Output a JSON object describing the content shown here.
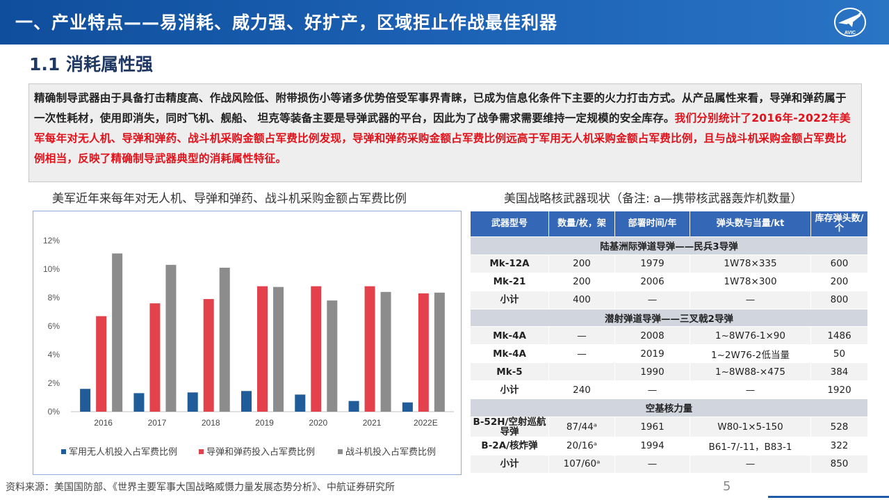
{
  "header": {
    "title": "一、产业特点——易消耗、威力强、好扩产，区域拒止作战最佳利器",
    "logo_text": "AVIC"
  },
  "section": {
    "title": "1.1 消耗属性强"
  },
  "intro": {
    "black_text": "精确制导武器由于具备打击精度高、作战风险低、附带损伤小等诸多优势倍受军事界青睐，已成为信息化条件下主要的火力打击方式。从产品属性来看，导弹和弹药属于一次性耗材，使用即消失，同时飞机、舰船、 坦克等装备主要是导弹武器的平台，因此为了战争需求需要维持一定规模的安全库存。",
    "red_text": "我们分别统计了2016年-2022年美军每年对无人机、导弹和弹药、战斗机采购金额占军费比例发现，导弹和弹药采购金额占军费比例远高于军用无人机采购金额占军费比例，且与战斗机采购金额占军费比例相当，反映了精确制导武器典型的消耗属性特征。"
  },
  "captions": {
    "left": "美军近年来每年对无人机、导弹和弹药、战斗机采购金额占军费比例",
    "right": "美国战略核武器现状（备注: a—携带核武器轰炸机数量）"
  },
  "chart_data": {
    "type": "bar",
    "categories": [
      "2016",
      "2017",
      "2018",
      "2019",
      "2020",
      "2021",
      "2022E"
    ],
    "series": [
      {
        "name": "军用无人机投入占军费比例",
        "color": "#1f5c99",
        "values": [
          1.6,
          1.3,
          1.35,
          1.45,
          1.2,
          0.75,
          0.65
        ]
      },
      {
        "name": "导弹和弹药投入占军费比例",
        "color": "#e3424c",
        "values": [
          6.7,
          7.6,
          7.9,
          8.8,
          8.8,
          8.8,
          8.3
        ]
      },
      {
        "name": "战斗机投入占军费比例",
        "color": "#8c8c8c",
        "values": [
          11.1,
          10.3,
          10.1,
          8.75,
          7.8,
          8.4,
          8.35
        ]
      }
    ],
    "yticks": [
      "0%",
      "2%",
      "4%",
      "6%",
      "8%",
      "10%",
      "12%"
    ],
    "ylim": [
      0,
      12
    ],
    "legend": "bottom"
  },
  "table": {
    "headers": [
      "武器型号",
      "数量/枚，架",
      "部署时间/年",
      "弹头数与当量/kt",
      "库存弹头数/个"
    ],
    "groups": [
      {
        "title": "陆基洲际弹道导弹——民兵3导弹",
        "rows": [
          [
            "Mk-12A",
            "200",
            "1979",
            "1W78×335",
            "600"
          ],
          [
            "Mk-21",
            "200",
            "2006",
            "1W78×300",
            "200"
          ],
          [
            "小计",
            "400",
            "—",
            "—",
            "800"
          ]
        ]
      },
      {
        "title": "潜射弹道导弹——三叉戟2导弹",
        "rows": [
          [
            "Mk-4A",
            "—",
            "2008",
            "1~8W76-1×90",
            "1486"
          ],
          [
            "Mk-4A",
            "—",
            "2019",
            "1~2W76-2低当量",
            "50"
          ],
          [
            "Mk-5",
            "",
            "1990",
            "1~8W88-×475",
            "384"
          ],
          [
            "小计",
            "240",
            "—",
            "—",
            "1920"
          ]
        ]
      },
      {
        "title": "空基核力量",
        "rows": [
          [
            "B-52H/空射巡航导弹",
            "87/44ᵃ",
            "1961",
            "W80-1×5-150",
            "528"
          ],
          [
            "B-2A/核炸弹",
            "20/16ᵃ",
            "1994",
            "B61-7/-11，B83-1",
            "322"
          ],
          [
            "小计",
            "107/60ᵃ",
            "—",
            "—",
            "850"
          ]
        ]
      }
    ]
  },
  "footer": {
    "source": "资料来源：美国国防部、《世界主要军事大国战略威慑力量发展态势分析》、中航证券研究所",
    "page": "5"
  }
}
